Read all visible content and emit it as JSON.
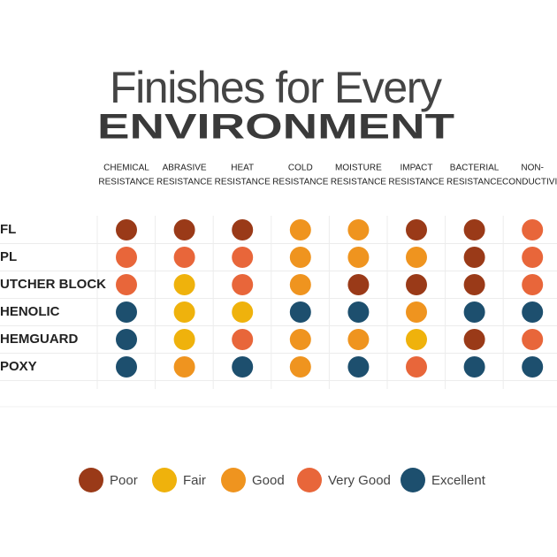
{
  "title": {
    "line1": "Finishes for Every",
    "line2": "ENVIRONMENT"
  },
  "columns": [
    [
      "CHEMICAL",
      "RESISTANCE"
    ],
    [
      "ABRASIVE",
      "RESISTANCE"
    ],
    [
      "HEAT",
      "RESISTANCE"
    ],
    [
      "COLD",
      "RESISTANCE"
    ],
    [
      "MOISTURE",
      "RESISTANCE"
    ],
    [
      "IMPACT",
      "RESISTANCE"
    ],
    [
      "BACTERIAL",
      "RESISTANCE"
    ],
    [
      "NON-",
      "CONDUCTIVIT"
    ]
  ],
  "rows": [
    {
      "label": "FL",
      "ratings": [
        "Poor",
        "Poor",
        "Poor",
        "Good",
        "Good",
        "Poor",
        "Poor",
        "Very Good"
      ]
    },
    {
      "label": "PL",
      "ratings": [
        "Very Good",
        "Very Good",
        "Very Good",
        "Good",
        "Good",
        "Good",
        "Poor",
        "Very Good"
      ]
    },
    {
      "label": "UTCHER BLOCK",
      "ratings": [
        "Very Good",
        "Fair",
        "Very Good",
        "Good",
        "Poor",
        "Poor",
        "Poor",
        "Very Good"
      ]
    },
    {
      "label": "HENOLIC",
      "ratings": [
        "Excellent",
        "Fair",
        "Fair",
        "Excellent",
        "Excellent",
        "Good",
        "Excellent",
        "Excellent"
      ]
    },
    {
      "label": "HEMGUARD",
      "ratings": [
        "Excellent",
        "Fair",
        "Very Good",
        "Good",
        "Good",
        "Fair",
        "Poor",
        "Very Good"
      ]
    },
    {
      "label": "POXY",
      "ratings": [
        "Excellent",
        "Good",
        "Excellent",
        "Good",
        "Excellent",
        "Very Good",
        "Excellent",
        "Excellent"
      ]
    }
  ],
  "legend": [
    {
      "label": "Poor",
      "color": "#9a3a18"
    },
    {
      "label": "Fair",
      "color": "#efb20c"
    },
    {
      "label": "Good",
      "color": "#ef941f"
    },
    {
      "label": "Very Good",
      "color": "#e8663a"
    },
    {
      "label": "Excellent",
      "color": "#1d4f6e"
    }
  ]
}
